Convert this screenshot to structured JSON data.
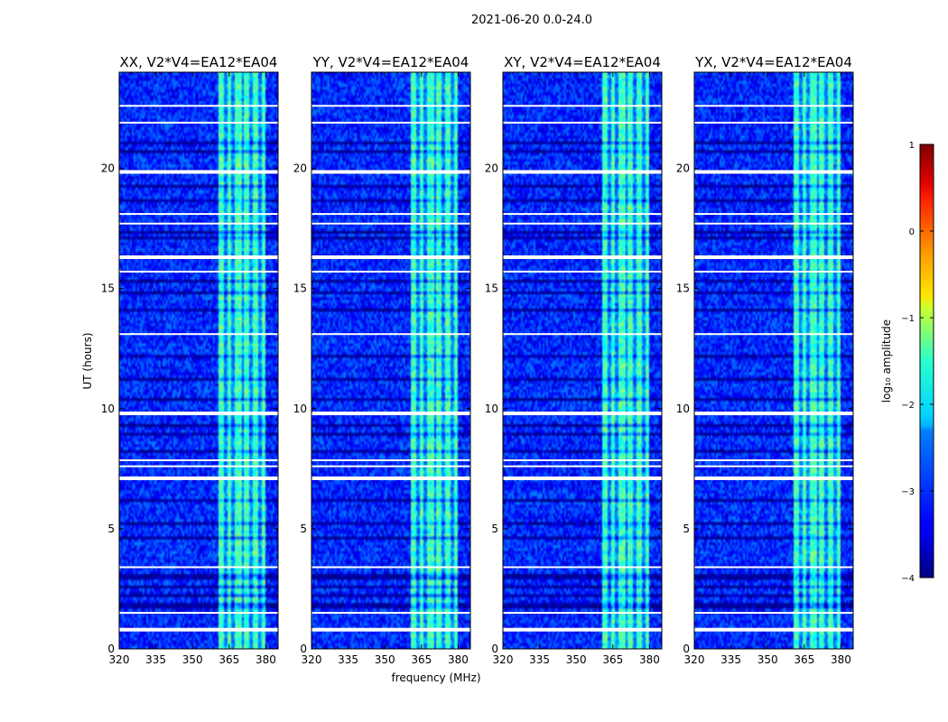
{
  "suptitle": "2021-06-20 0.0-24.0",
  "chart_data": {
    "type": "heatmap",
    "suptitle": "2021-06-20 0.0-24.0",
    "xlabel": "frequency (MHz)",
    "ylabel": "UT (hours)",
    "xlim": [
      320,
      385
    ],
    "ylim": [
      0,
      24
    ],
    "xticks": [
      320,
      335,
      350,
      365,
      380
    ],
    "yticks": [
      0,
      5,
      10,
      15,
      20
    ],
    "panels": [
      {
        "title": "XX, V2*V4=EA12*EA04",
        "seed": 11,
        "band_scale": 1.0
      },
      {
        "title": "YY, V2*V4=EA12*EA04",
        "seed": 23,
        "band_scale": 1.1
      },
      {
        "title": "XY, V2*V4=EA12*EA04",
        "seed": 37,
        "band_scale": 0.95
      },
      {
        "title": "YX, V2*V4=EA12*EA04",
        "seed": 53,
        "band_scale": 0.9
      }
    ],
    "band_mhz": [
      360.5,
      379.5
    ],
    "band_stripes_mhz": [
      363.5,
      366.5,
      370.5,
      374,
      377.5
    ],
    "gap_rows_hours": [
      0.8,
      1.5,
      3.4,
      7.1,
      7.6,
      7.85,
      9.8,
      13.1,
      15.7,
      16.3,
      17.7,
      18.1,
      19.85,
      21.9,
      22.6
    ],
    "dark_rows_hours": [
      1.8,
      2.2,
      2.6,
      3.0,
      4.6,
      5.2,
      6.2,
      8.2,
      8.9,
      9.3,
      10.4,
      11.2,
      12.2,
      14.1,
      14.8,
      15.3,
      17.1,
      17.4,
      18.7,
      19.3,
      20.7,
      21.1
    ],
    "colorbar": {
      "label": "log₁₀ amplitude",
      "vmin": -4,
      "vmax": 1,
      "ticks": [
        1,
        0,
        -1,
        -2,
        -3,
        -4
      ],
      "tick_labels": [
        "1",
        "0",
        "−1",
        "−2",
        "−3",
        "−4"
      ],
      "colormap": "jet"
    },
    "background_log_amplitude": -3.2,
    "band_log_amplitude": -1.8
  }
}
